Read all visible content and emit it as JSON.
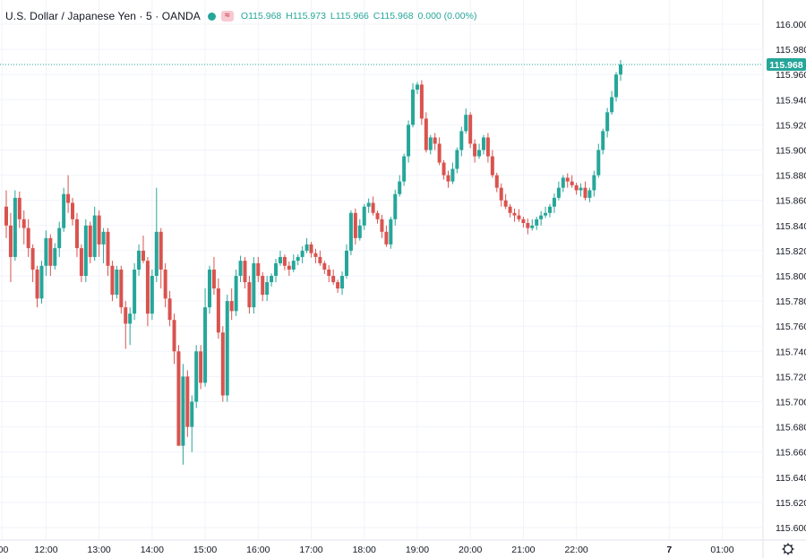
{
  "legend": {
    "symbol": "U.S. Dollar / Japanese Yen · 5 · OANDA",
    "wave_icon": "≈",
    "open": "O115.968",
    "high": "H115.973",
    "low": "L115.966",
    "close": "C115.968",
    "change": "0.000 (0.00%)"
  },
  "colors": {
    "up": "#26a69a",
    "down": "#d9534f",
    "grid": "#f0f3fa",
    "axis_text": "#131722",
    "price_line": "#26a69a"
  },
  "last_price_label": "115.968",
  "settings_icon": "gear-icon",
  "chart_data": {
    "type": "candlestick",
    "title": "U.S. Dollar / Japanese Yen · 5 · OANDA",
    "ylim": [
      115.59,
      116.01
    ],
    "y_ticks": [
      "116.000",
      "115.980",
      "115.960",
      "115.940",
      "115.920",
      "115.900",
      "115.880",
      "115.860",
      "115.840",
      "115.820",
      "115.800",
      "115.780",
      "115.760",
      "115.740",
      "115.720",
      "115.700",
      "115.680",
      "115.660",
      "115.640",
      "115.620",
      "115.600"
    ],
    "x_ticks": [
      {
        "label": ":00",
        "idx": -1
      },
      {
        "label": "12:00",
        "idx": 9
      },
      {
        "label": "13:00",
        "idx": 21
      },
      {
        "label": "14:00",
        "idx": 33
      },
      {
        "label": "15:00",
        "idx": 45
      },
      {
        "label": "16:00",
        "idx": 57
      },
      {
        "label": "17:00",
        "idx": 69
      },
      {
        "label": "18:00",
        "idx": 81
      },
      {
        "label": "19:00",
        "idx": 93
      },
      {
        "label": "20:00",
        "idx": 105
      },
      {
        "label": "21:00",
        "idx": 117
      },
      {
        "label": "22:00",
        "idx": 129
      },
      {
        "label": "7",
        "idx": 150
      },
      {
        "label": "01:00",
        "idx": 162
      }
    ],
    "last_price": 115.968,
    "ohlc": [
      [
        115.855,
        115.868,
        115.83,
        115.84
      ],
      [
        115.84,
        115.85,
        115.795,
        115.815
      ],
      [
        115.815,
        115.868,
        115.812,
        115.862
      ],
      [
        115.862,
        115.867,
        115.838,
        115.845
      ],
      [
        115.845,
        115.852,
        115.825,
        115.838
      ],
      [
        115.838,
        115.845,
        115.815,
        115.822
      ],
      [
        115.822,
        115.825,
        115.795,
        115.805
      ],
      [
        115.805,
        115.808,
        115.775,
        115.782
      ],
      [
        115.782,
        115.812,
        115.778,
        115.808
      ],
      [
        115.808,
        115.836,
        115.8,
        115.83
      ],
      [
        115.83,
        115.833,
        115.8,
        115.808
      ],
      [
        115.808,
        115.826,
        115.805,
        115.822
      ],
      [
        115.822,
        115.843,
        115.815,
        115.838
      ],
      [
        115.838,
        115.87,
        115.835,
        115.865
      ],
      [
        115.865,
        115.88,
        115.85,
        115.858
      ],
      [
        115.858,
        115.862,
        115.84,
        115.845
      ],
      [
        115.845,
        115.85,
        115.815,
        115.822
      ],
      [
        115.822,
        115.825,
        115.795,
        115.8
      ],
      [
        115.8,
        115.845,
        115.795,
        115.84
      ],
      [
        115.84,
        115.843,
        115.81,
        115.815
      ],
      [
        115.815,
        115.855,
        115.812,
        115.848
      ],
      [
        115.848,
        115.852,
        115.815,
        115.825
      ],
      [
        115.825,
        115.838,
        115.81,
        115.835
      ],
      [
        115.835,
        115.838,
        115.8,
        115.808
      ],
      [
        115.808,
        115.812,
        115.78,
        115.785
      ],
      [
        115.785,
        115.808,
        115.782,
        115.805
      ],
      [
        115.805,
        115.808,
        115.77,
        115.775
      ],
      [
        115.775,
        115.78,
        115.742,
        115.762
      ],
      [
        115.762,
        115.775,
        115.745,
        115.77
      ],
      [
        115.77,
        115.81,
        115.765,
        115.805
      ],
      [
        115.805,
        115.825,
        115.8,
        115.82
      ],
      [
        115.82,
        115.832,
        115.81,
        115.812
      ],
      [
        115.812,
        115.815,
        115.76,
        115.77
      ],
      [
        115.77,
        115.805,
        115.765,
        115.8
      ],
      [
        115.8,
        115.87,
        115.795,
        115.835
      ],
      [
        115.835,
        115.838,
        115.79,
        115.805
      ],
      [
        115.805,
        115.81,
        115.775,
        115.782
      ],
      [
        115.782,
        115.788,
        115.76,
        115.765
      ],
      [
        115.765,
        115.77,
        115.73,
        115.74
      ],
      [
        115.74,
        115.745,
        115.665,
        115.665
      ],
      [
        115.665,
        115.73,
        115.65,
        115.72
      ],
      [
        115.72,
        115.725,
        115.672,
        115.68
      ],
      [
        115.68,
        115.705,
        115.66,
        115.7
      ],
      [
        115.7,
        115.745,
        115.695,
        115.74
      ],
      [
        115.74,
        115.745,
        115.71,
        115.715
      ],
      [
        115.715,
        115.79,
        115.712,
        115.775
      ],
      [
        115.775,
        115.808,
        115.77,
        115.805
      ],
      [
        115.805,
        115.815,
        115.785,
        115.79
      ],
      [
        115.79,
        115.798,
        115.75,
        115.755
      ],
      [
        115.755,
        115.76,
        115.7,
        115.705
      ],
      [
        115.705,
        115.785,
        115.7,
        115.78
      ],
      [
        115.78,
        115.79,
        115.765,
        115.772
      ],
      [
        115.772,
        115.805,
        115.768,
        115.8
      ],
      [
        115.8,
        115.816,
        115.795,
        115.812
      ],
      [
        115.812,
        115.815,
        115.79,
        115.795
      ],
      [
        115.795,
        115.8,
        115.77,
        115.775
      ],
      [
        115.775,
        115.815,
        115.77,
        115.81
      ],
      [
        115.81,
        115.815,
        115.795,
        115.8
      ],
      [
        115.8,
        115.803,
        115.78,
        115.785
      ],
      [
        115.785,
        115.8,
        115.78,
        115.795
      ]
    ]
  }
}
